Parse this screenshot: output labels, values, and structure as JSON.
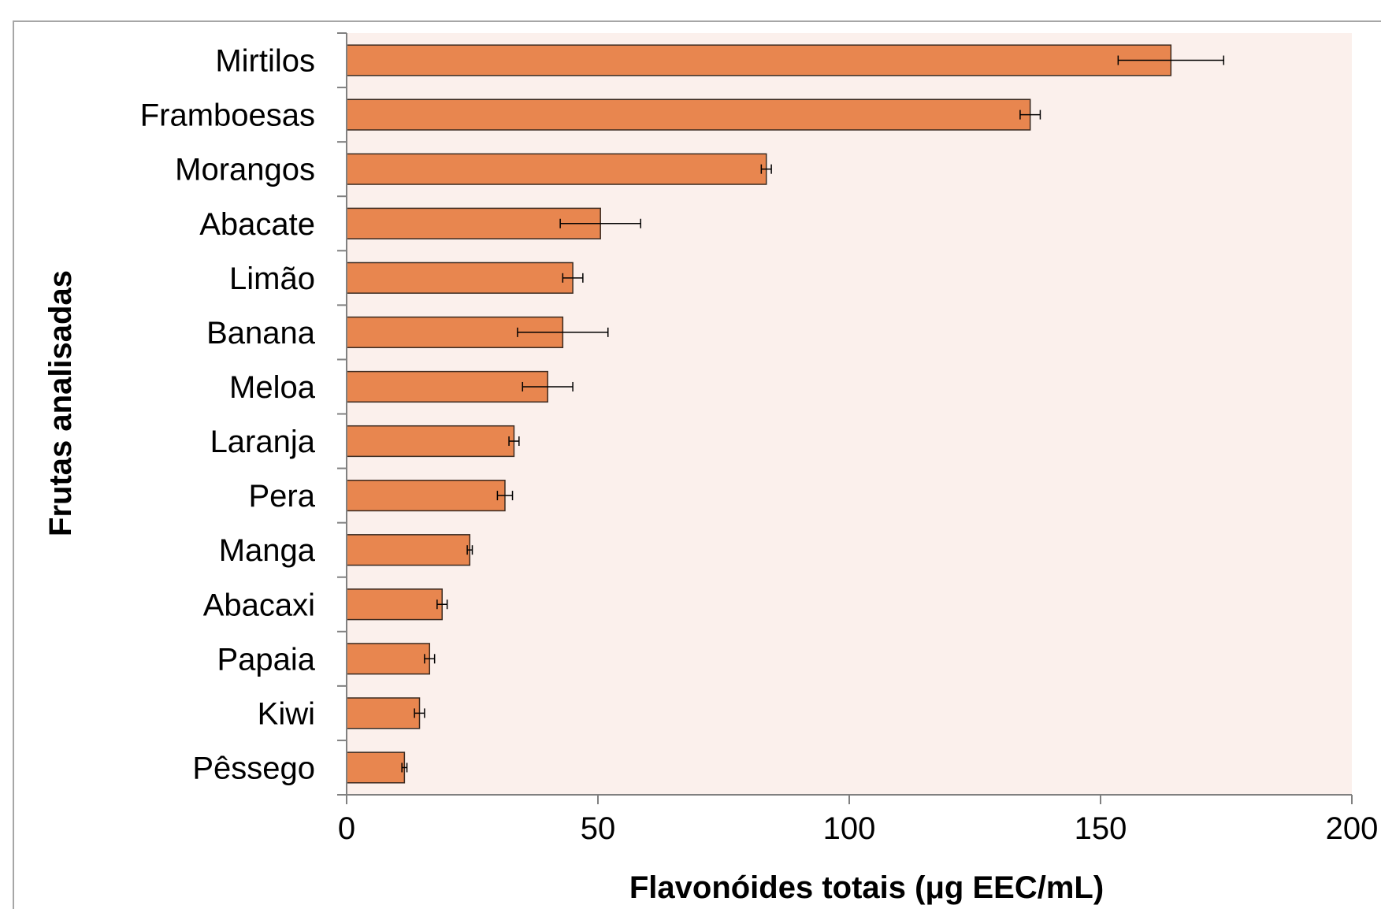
{
  "chart_data": {
    "type": "bar",
    "orientation": "horizontal",
    "categories": [
      "Mirtilos",
      "Framboesas",
      "Morangos",
      "Abacate",
      "Limão",
      "Banana",
      "Meloa",
      "Laranja",
      "Pera",
      "Manga",
      "Abacaxi",
      "Papaia",
      "Kiwi",
      "Pêssego"
    ],
    "values": [
      164,
      136,
      83.5,
      50.5,
      45,
      43,
      40,
      33.3,
      31.5,
      24.5,
      19,
      16.5,
      14.5,
      11.5
    ],
    "errors": [
      10.5,
      2,
      1,
      8,
      2,
      9,
      5,
      1,
      1.5,
      0.5,
      1,
      1,
      1,
      0.5
    ],
    "title": "",
    "xlabel": "Flavonóides totais (μg EEC/mL)",
    "ylabel": "Frutas analisadas",
    "xlim": [
      0,
      200
    ],
    "xticks": [
      0,
      50,
      100,
      150,
      200
    ],
    "grid": false,
    "legend": "none",
    "colors": {
      "bar_fill": "#E8864F",
      "bar_stroke": "#3A2A20",
      "plot_background": "#FBF0EC",
      "axis": "#808080",
      "frame": "#A6A6A6",
      "error_bar": "#000000"
    }
  }
}
